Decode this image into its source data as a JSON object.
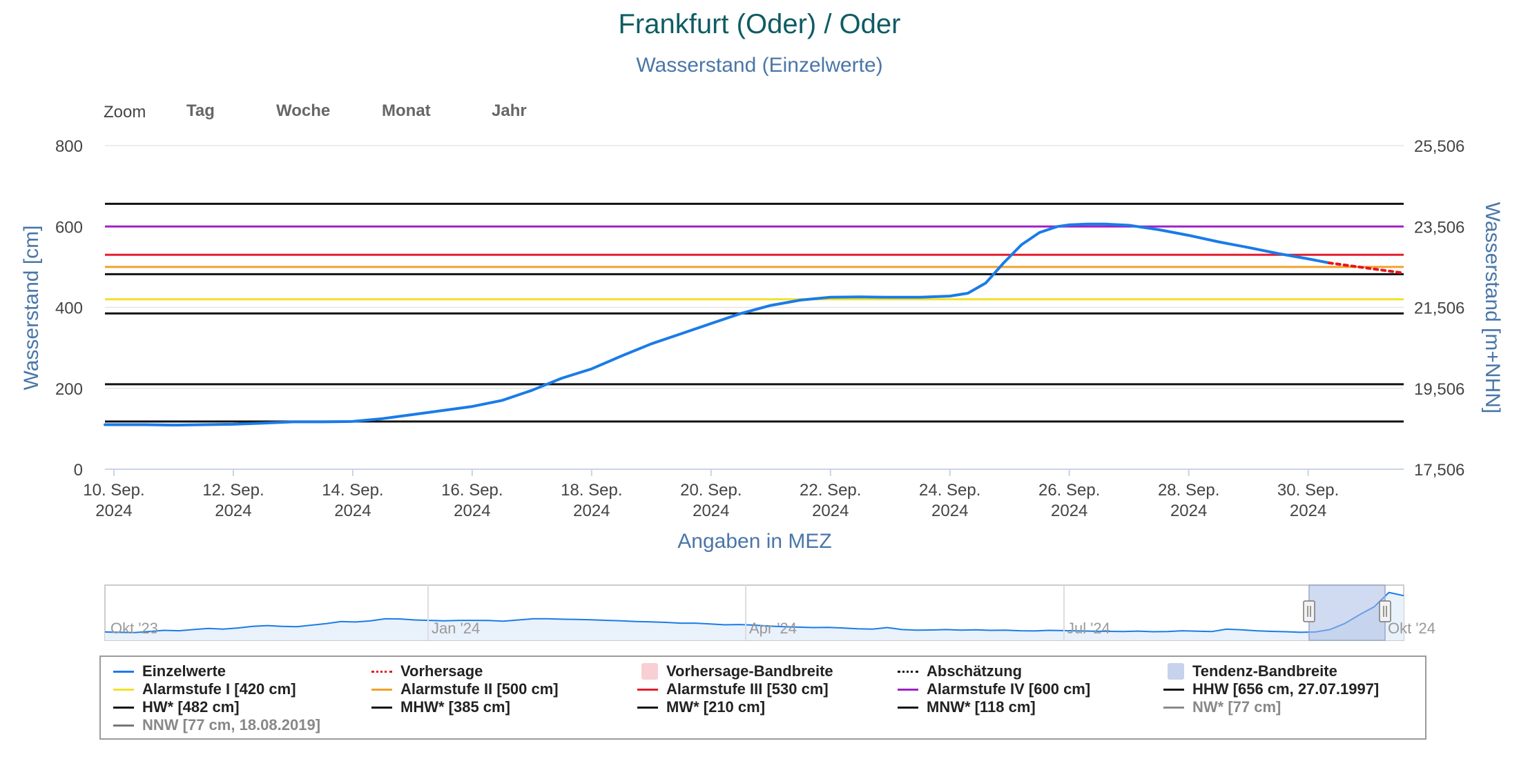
{
  "chart_data": {
    "type": "line",
    "title": "Frankfurt (Oder) / Oder",
    "subtitle": "Wasserstand (Einzelwerte)",
    "xlabel": "Angaben in MEZ",
    "ylabel_left": "Wasserstand [cm]",
    "ylabel_right": "Wasserstand [m+NHN]",
    "ylim": [
      0,
      800
    ],
    "yticks_left": [
      "0",
      "200",
      "400",
      "600",
      "800"
    ],
    "yticks_right": [
      "17,506",
      "19,506",
      "21,506",
      "23,506",
      "25,506"
    ],
    "xlim_days": [
      9.85,
      31.6
    ],
    "xticks": [
      {
        "day": 10,
        "line1": "10. Sep.",
        "line2": "2024"
      },
      {
        "day": 12,
        "line1": "12. Sep.",
        "line2": "2024"
      },
      {
        "day": 14,
        "line1": "14. Sep.",
        "line2": "2024"
      },
      {
        "day": 16,
        "line1": "16. Sep.",
        "line2": "2024"
      },
      {
        "day": 18,
        "line1": "18. Sep.",
        "line2": "2024"
      },
      {
        "day": 20,
        "line1": "20. Sep.",
        "line2": "2024"
      },
      {
        "day": 22,
        "line1": "22. Sep.",
        "line2": "2024"
      },
      {
        "day": 24,
        "line1": "24. Sep.",
        "line2": "2024"
      },
      {
        "day": 26,
        "line1": "26. Sep.",
        "line2": "2024"
      },
      {
        "day": 28,
        "line1": "28. Sep.",
        "line2": "2024"
      },
      {
        "day": 30,
        "line1": "30. Sep.",
        "line2": "2024"
      }
    ],
    "series": [
      {
        "name": "Einzelwerte",
        "color": "#1a7be8",
        "x": [
          9.85,
          10.5,
          11.0,
          11.5,
          12.0,
          12.5,
          13.0,
          13.5,
          14.0,
          14.5,
          15.0,
          15.5,
          16.0,
          16.5,
          17.0,
          17.5,
          18.0,
          18.5,
          19.0,
          19.5,
          20.0,
          20.5,
          21.0,
          21.5,
          22.0,
          22.5,
          23.0,
          23.5,
          24.0,
          24.3,
          24.6,
          24.9,
          25.2,
          25.5,
          25.8,
          26.0,
          26.3,
          26.6,
          27.0,
          27.5,
          28.0,
          28.5,
          29.0,
          29.5,
          30.0,
          30.35
        ],
        "y": [
          110,
          110,
          109,
          110,
          111,
          114,
          117,
          117,
          118,
          125,
          135,
          145,
          155,
          170,
          195,
          225,
          248,
          280,
          310,
          335,
          360,
          385,
          405,
          418,
          425,
          426,
          425,
          425,
          428,
          435,
          460,
          510,
          555,
          585,
          600,
          604,
          606,
          606,
          603,
          592,
          578,
          562,
          548,
          533,
          520,
          510
        ]
      },
      {
        "name": "Vorhersage",
        "color": "#e8141c",
        "dashed": true,
        "x": [
          30.35,
          30.8,
          31.2,
          31.6
        ],
        "y": [
          510,
          501,
          493,
          485
        ]
      }
    ],
    "thresholds": [
      {
        "name": "Alarmstufe I [420 cm]",
        "value": 420,
        "color": "#f2e12a"
      },
      {
        "name": "Alarmstufe II [500 cm]",
        "value": 500,
        "color": "#f0a12a"
      },
      {
        "name": "Alarmstufe III [530 cm]",
        "value": 530,
        "color": "#e41c2c"
      },
      {
        "name": "Alarmstufe IV [600 cm]",
        "value": 600,
        "color": "#a020c8"
      },
      {
        "name": "HHW [656 cm, 27.07.1997]",
        "value": 656,
        "color": "#111111"
      },
      {
        "name": "HW* [482 cm]",
        "value": 482,
        "color": "#111111"
      },
      {
        "name": "MHW* [385 cm]",
        "value": 385,
        "color": "#111111"
      },
      {
        "name": "MW* [210 cm]",
        "value": 210,
        "color": "#111111"
      },
      {
        "name": "MNW* [118 cm]",
        "value": 118,
        "color": "#111111"
      }
    ],
    "navigator": {
      "labels": [
        "Okt '23",
        "Jan '24",
        "Apr '24",
        "Jul '24",
        "Okt '24"
      ],
      "values": [
        105,
        100,
        98,
        110,
        125,
        120,
        135,
        150,
        140,
        155,
        175,
        185,
        175,
        170,
        190,
        210,
        235,
        230,
        245,
        270,
        268,
        255,
        250,
        245,
        250,
        250,
        248,
        240,
        255,
        270,
        270,
        265,
        262,
        258,
        250,
        245,
        235,
        232,
        225,
        215,
        215,
        205,
        195,
        198,
        190,
        178,
        170,
        165,
        160,
        162,
        155,
        145,
        140,
        160,
        135,
        128,
        130,
        135,
        128,
        132,
        125,
        128,
        120,
        118,
        125,
        122,
        118,
        115,
        112,
        110,
        116,
        108,
        110,
        120,
        114,
        110,
        140,
        132,
        120,
        112,
        108,
        100,
        105,
        135,
        210,
        320,
        420,
        600,
        560
      ]
    }
  },
  "zoom": {
    "label": "Zoom",
    "buttons": [
      "Tag",
      "Woche",
      "Monat",
      "Jahr"
    ]
  },
  "legend": [
    {
      "name": "Einzelwerte",
      "type": "line",
      "color": "#1a7be8"
    },
    {
      "name": "Vorhersage",
      "type": "dotted",
      "color": "#e8141c"
    },
    {
      "name": "Vorhersage-Bandbreite",
      "type": "rect",
      "color": "#f8cfd2"
    },
    {
      "name": "Abschätzung",
      "type": "dotted",
      "color": "#111111"
    },
    {
      "name": "Tendenz-Bandbreite",
      "type": "rect",
      "color": "#c7d3ec"
    },
    {
      "name": "Alarmstufe I [420 cm]",
      "type": "line",
      "color": "#f2e12a"
    },
    {
      "name": "Alarmstufe II [500 cm]",
      "type": "line",
      "color": "#f0a12a"
    },
    {
      "name": "Alarmstufe III [530 cm]",
      "type": "line",
      "color": "#e41c2c"
    },
    {
      "name": "Alarmstufe IV [600 cm]",
      "type": "line",
      "color": "#a020c8"
    },
    {
      "name": "HHW [656 cm, 27.07.1997]",
      "type": "line",
      "color": "#111111"
    },
    {
      "name": "HW* [482 cm]",
      "type": "line",
      "color": "#111111"
    },
    {
      "name": "MHW* [385 cm]",
      "type": "line",
      "color": "#111111"
    },
    {
      "name": "MW* [210 cm]",
      "type": "line",
      "color": "#111111"
    },
    {
      "name": "MNW* [118 cm]",
      "type": "line",
      "color": "#111111"
    },
    {
      "name": "NW* [77 cm]",
      "type": "line",
      "color": "#8a8a8a",
      "dim": true
    },
    {
      "name": "NNW [77 cm, 18.08.2019]",
      "type": "line",
      "color": "#777777",
      "dim": true
    }
  ]
}
